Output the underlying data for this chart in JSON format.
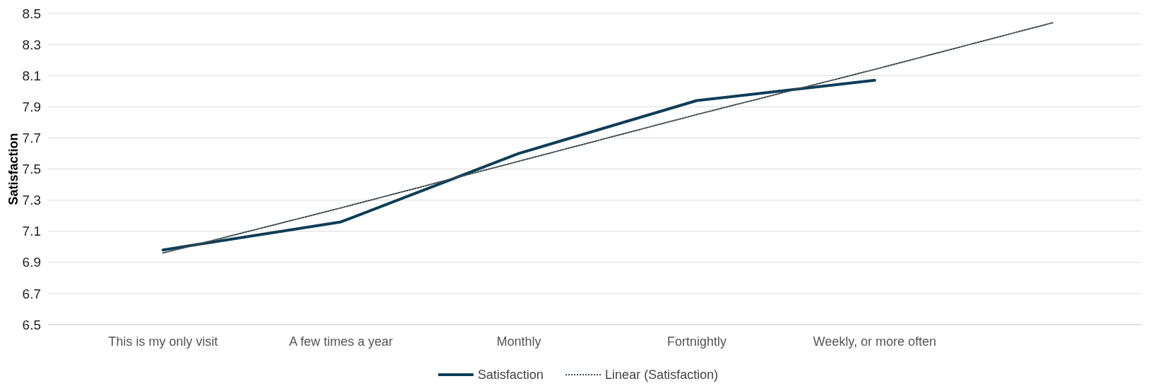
{
  "chart_data": {
    "type": "line",
    "ylabel": "Satisfaction",
    "categories": [
      "This is my only visit",
      "A few times a year",
      "Monthly",
      "Fortnightly",
      "Weekly, or more often",
      null
    ],
    "series": [
      {
        "name": "Satisfaction",
        "color": "#0e3d56",
        "values": [
          6.98,
          7.16,
          7.6,
          7.94,
          8.07,
          null
        ],
        "line_style": "solid"
      },
      {
        "name": "Linear (Satisfaction)",
        "color": "#3b4a4c",
        "values": [
          6.96,
          7.25,
          7.55,
          7.85,
          8.14,
          8.44
        ],
        "line_style": "dotted"
      }
    ],
    "ylim": [
      6.5,
      8.5
    ],
    "yticks": [
      6.5,
      6.7,
      6.9,
      7.1,
      7.3,
      7.5,
      7.7,
      7.9,
      8.1,
      8.3,
      8.5
    ],
    "grid": "y",
    "legend": "bottom"
  }
}
